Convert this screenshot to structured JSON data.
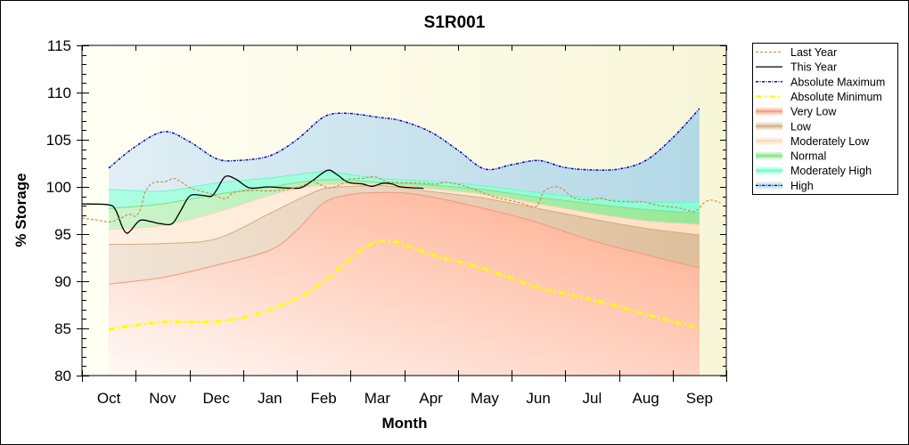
{
  "chart_data": {
    "type": "area",
    "title": "S1R001",
    "xlabel": "Month",
    "ylabel": "% Storage",
    "categories": [
      "Oct",
      "Nov",
      "Dec",
      "Jan",
      "Feb",
      "Mar",
      "Apr",
      "May",
      "Jun",
      "Jul",
      "Aug",
      "Sep"
    ],
    "x_units": "month index (Oct = 0)",
    "xlim": [
      -0.5,
      11.5
    ],
    "ylim": [
      80,
      115
    ],
    "yticks": [
      80,
      85,
      90,
      95,
      100,
      105,
      110,
      115
    ],
    "grid": false,
    "legend_position": "right",
    "legend": [
      "Last Year",
      "This Year",
      "Absolute Maximum",
      "Absolute Minimum",
      "Very Low",
      "Low",
      "Moderately Low",
      "Normal",
      "Moderately High",
      "High"
    ],
    "bands": {
      "x": [
        0,
        1,
        2,
        3,
        3.5,
        4,
        4.5,
        5,
        5.5,
        6,
        7,
        8,
        9,
        10,
        11
      ],
      "items": [
        {
          "name": "Very Low",
          "color": "#FFAA8A",
          "edge": "#F4967A",
          "upper": [
            89.7,
            90.4,
            91.7,
            93.3,
            95.4,
            98.3,
            99.2,
            99.4,
            99.35,
            98.95,
            97.7,
            96.2,
            94.3,
            92.8,
            91.4
          ]
        },
        {
          "name": "Low",
          "color": "#DEBF9B",
          "edge": "#D2AA7C",
          "upper": [
            93.9,
            94.0,
            94.5,
            97.2,
            98.6,
            99.8,
            100.05,
            100.15,
            99.9,
            99.5,
            98.8,
            97.7,
            96.6,
            95.6,
            94.9
          ]
        },
        {
          "name": "Moderately Low",
          "color": "#FFE0C4",
          "edge": "#FFD4B0",
          "upper": [
            95.5,
            95.9,
            97.3,
            99.1,
            99.8,
            100.2,
            100.3,
            100.3,
            100.1,
            99.8,
            99.2,
            98.2,
            97.2,
            96.4,
            96.0
          ]
        },
        {
          "name": "Normal",
          "color": "#98E898",
          "edge": "#80DC80",
          "upper": [
            97.7,
            98.2,
            99.2,
            100.0,
            100.45,
            100.75,
            100.7,
            100.5,
            100.35,
            100.2,
            99.7,
            98.9,
            98.2,
            97.6,
            97.2
          ]
        },
        {
          "name": "Moderately High",
          "color": "#88FFD6",
          "edge": "#6CF5C4",
          "upper": [
            99.75,
            99.55,
            100.4,
            100.95,
            101.3,
            101.6,
            101.3,
            100.9,
            100.75,
            100.6,
            100.1,
            99.4,
            98.8,
            98.4,
            98.4
          ]
        },
        {
          "name": "High",
          "color": "#B3D8E6",
          "upper_series": "Absolute Maximum"
        }
      ]
    },
    "series": [
      {
        "name": "Last Year",
        "color": "#CD853F",
        "style": "dashed",
        "x": [
          -0.5,
          -0.25,
          0.02,
          0.22,
          0.38,
          0.5,
          0.6,
          0.68,
          0.83,
          1.05,
          1.21,
          1.34,
          1.54,
          1.88,
          2.16,
          2.32,
          2.62,
          3.12,
          3.57,
          3.78,
          3.95,
          4.12,
          4.33,
          4.45,
          4.73,
          4.9,
          5.0,
          5.16,
          5.28,
          5.83,
          6.11,
          6.27,
          6.56,
          6.82,
          7.05,
          7.27,
          7.6,
          7.93,
          8.02,
          8.1,
          8.27,
          8.43,
          8.6,
          8.71,
          8.93,
          9.15,
          9.38,
          9.76,
          9.98,
          10.26,
          10.59,
          10.87,
          10.97,
          11.08,
          11.2,
          11.3,
          11.39
        ],
        "y": [
          96.7,
          96.5,
          96.3,
          96.7,
          97.1,
          96.9,
          97.8,
          99.5,
          100.45,
          100.55,
          100.9,
          100.55,
          99.85,
          99.3,
          98.75,
          99.4,
          99.6,
          99.6,
          100.05,
          100.6,
          100.2,
          99.9,
          100.3,
          100.8,
          100.9,
          101.1,
          101.0,
          100.6,
          100.5,
          100.4,
          100.3,
          100.5,
          100.2,
          99.7,
          99.2,
          98.8,
          98.4,
          97.9,
          98.4,
          99.5,
          100.0,
          99.85,
          99.05,
          98.75,
          98.6,
          98.8,
          98.5,
          98.4,
          98.4,
          98.0,
          97.8,
          97.4,
          97.6,
          98.3,
          98.6,
          98.5,
          98.3
        ]
      },
      {
        "name": "This Year",
        "color": "#000000",
        "style": "solid",
        "x": [
          -0.5,
          0.0,
          0.13,
          0.25,
          0.33,
          0.41,
          0.58,
          0.8,
          0.96,
          1.18,
          1.34,
          1.51,
          1.74,
          1.91,
          2.01,
          2.17,
          2.37,
          2.62,
          2.95,
          3.29,
          3.57,
          3.78,
          4.07,
          4.25,
          4.45,
          4.73,
          4.9,
          5.11,
          5.28,
          5.44,
          5.86
        ],
        "y": [
          98.2,
          98.1,
          97.5,
          95.75,
          95.1,
          95.4,
          96.45,
          96.3,
          96.1,
          96.1,
          97.5,
          99.05,
          99.1,
          99.0,
          99.7,
          101.1,
          100.8,
          99.9,
          100.0,
          99.9,
          99.9,
          100.6,
          101.75,
          101.3,
          100.5,
          100.3,
          100.06,
          100.4,
          100.3,
          100.0,
          99.85
        ]
      },
      {
        "name": "Absolute Maximum",
        "color": "#0000CC",
        "style": "dash-dot",
        "x": [
          0,
          0.5,
          1.03,
          1.5,
          2,
          2.4,
          3,
          3.5,
          4,
          4.4,
          5,
          5.45,
          6,
          6.5,
          7,
          7.5,
          8,
          8.5,
          9,
          9.5,
          10,
          10.5,
          11
        ],
        "y": [
          102.0,
          104.3,
          105.85,
          104.8,
          103.0,
          102.8,
          103.3,
          105.0,
          107.4,
          107.8,
          107.4,
          107.0,
          105.8,
          103.9,
          101.9,
          102.35,
          102.8,
          102.05,
          101.8,
          101.9,
          102.8,
          105.2,
          108.3
        ]
      },
      {
        "name": "Absolute Minimum",
        "color": "#FFFF00",
        "style": "dash-dot-thick",
        "x": [
          0,
          0.33,
          0.88,
          1.16,
          1.94,
          2.37,
          2.82,
          3.15,
          3.43,
          3.7,
          4.1,
          4.48,
          4.76,
          5.03,
          5.31,
          5.59,
          6.14,
          6.69,
          7.47,
          8,
          9,
          10,
          11
        ],
        "y": [
          84.9,
          85.2,
          85.6,
          85.7,
          85.7,
          86.0,
          86.6,
          87.3,
          88.0,
          88.75,
          90.4,
          92.3,
          93.55,
          94.25,
          94.2,
          93.7,
          92.6,
          91.8,
          90.4,
          89.3,
          88.05,
          86.5,
          85.0
        ]
      }
    ]
  }
}
